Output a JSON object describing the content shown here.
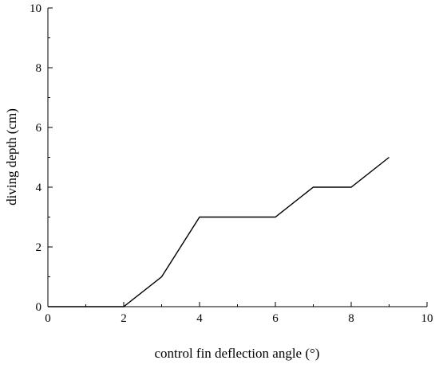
{
  "chart_data": {
    "type": "line",
    "title": "",
    "xlabel": "control fin deflection angle (°)",
    "ylabel": "diving depth (cm)",
    "xlim": [
      0,
      10
    ],
    "ylim": [
      0,
      10
    ],
    "x_ticks": [
      "0",
      "2",
      "4",
      "6",
      "8",
      "10"
    ],
    "y_ticks": [
      "0",
      "2",
      "4",
      "6",
      "8",
      "10"
    ],
    "grid": false,
    "legend": "none",
    "series": [
      {
        "x": [
          0,
          1,
          2,
          3,
          4,
          5,
          6,
          7,
          8,
          9
        ],
        "y": [
          0,
          0,
          0,
          1,
          3,
          3,
          3,
          4,
          4,
          5
        ],
        "color": "#000000"
      }
    ]
  }
}
